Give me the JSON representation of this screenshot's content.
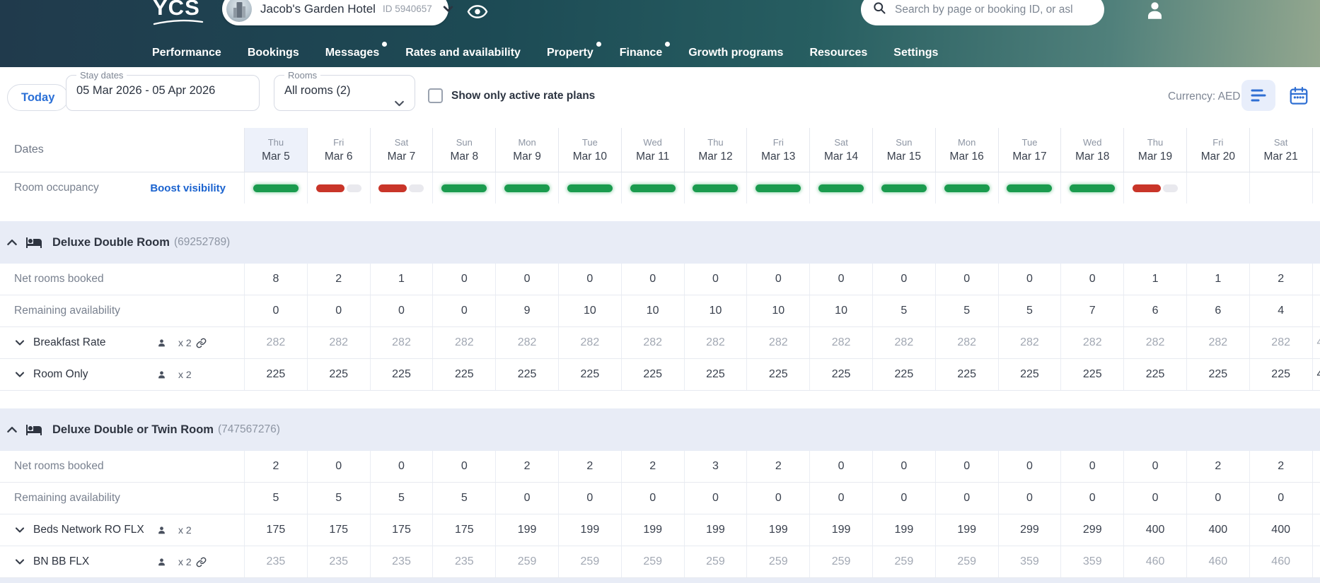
{
  "brand": {
    "logo_text": "YCS"
  },
  "header": {
    "hotel_name": "Jacob's Garden Hotel",
    "hotel_id": "ID 5940657",
    "search_placeholder": "Search by page or booking ID, or asl",
    "nav": [
      {
        "label": "Performance",
        "dot": false
      },
      {
        "label": "Bookings",
        "dot": false
      },
      {
        "label": "Messages",
        "dot": true
      },
      {
        "label": "Rates and availability",
        "dot": false
      },
      {
        "label": "Property",
        "dot": true
      },
      {
        "label": "Finance",
        "dot": true
      },
      {
        "label": "Growth programs",
        "dot": false
      },
      {
        "label": "Resources",
        "dot": false
      },
      {
        "label": "Settings",
        "dot": false
      }
    ]
  },
  "toolbar": {
    "today_label": "Today",
    "stay_dates_label": "Stay dates",
    "stay_dates_value": "05 Mar 2026 - 05 Apr 2026",
    "rooms_label": "Rooms",
    "rooms_value": "All rooms (2)",
    "active_plans_label": "Show only active rate plans",
    "currency_label": "Currency: AED"
  },
  "table": {
    "dates_label": "Dates",
    "occupancy_label": "Room occupancy",
    "boost_label": "Boost visibility",
    "columns": [
      {
        "day": "Thu",
        "date": "Mar 5",
        "today": true
      },
      {
        "day": "Fri",
        "date": "Mar 6",
        "today": false
      },
      {
        "day": "Sat",
        "date": "Mar 7",
        "today": false
      },
      {
        "day": "Sun",
        "date": "Mar 8",
        "today": false
      },
      {
        "day": "Mon",
        "date": "Mar 9",
        "today": false
      },
      {
        "day": "Tue",
        "date": "Mar 10",
        "today": false
      },
      {
        "day": "Wed",
        "date": "Mar 11",
        "today": false
      },
      {
        "day": "Thu",
        "date": "Mar 12",
        "today": false
      },
      {
        "day": "Fri",
        "date": "Mar 13",
        "today": false
      },
      {
        "day": "Sat",
        "date": "Mar 14",
        "today": false
      },
      {
        "day": "Sun",
        "date": "Mar 15",
        "today": false
      },
      {
        "day": "Mon",
        "date": "Mar 16",
        "today": false
      },
      {
        "day": "Tue",
        "date": "Mar 17",
        "today": false
      },
      {
        "day": "Wed",
        "date": "Mar 18",
        "today": false
      },
      {
        "day": "Thu",
        "date": "Mar 19",
        "today": false
      },
      {
        "day": "Fri",
        "date": "Mar 20",
        "today": false
      },
      {
        "day": "Sat",
        "date": "Mar 21",
        "today": false
      }
    ],
    "occupancy": [
      "green",
      "red",
      "red",
      "green",
      "green",
      "green",
      "green",
      "green",
      "green",
      "green",
      "green",
      "green",
      "green",
      "green",
      "red",
      "none",
      "none"
    ]
  },
  "rooms": [
    {
      "name": "Deluxe Double Room",
      "id": "(69252789)",
      "rows": [
        {
          "type": "metric",
          "label": "Net rooms booked",
          "values": [
            8,
            2,
            1,
            0,
            0,
            0,
            0,
            0,
            0,
            0,
            0,
            0,
            0,
            0,
            1,
            1,
            2
          ],
          "partial": ""
        },
        {
          "type": "metric",
          "label": "Remaining availability",
          "values": [
            0,
            0,
            0,
            0,
            9,
            10,
            10,
            10,
            10,
            10,
            5,
            5,
            5,
            7,
            6,
            6,
            4
          ],
          "partial": ""
        },
        {
          "type": "rate",
          "label": "Breakfast Rate",
          "persons": "x 2",
          "linked": true,
          "muted": true,
          "values": [
            282,
            282,
            282,
            282,
            282,
            282,
            282,
            282,
            282,
            282,
            282,
            282,
            282,
            282,
            282,
            282,
            282
          ],
          "partial": "4"
        },
        {
          "type": "rate",
          "label": "Room Only",
          "persons": "x 2",
          "linked": false,
          "muted": false,
          "values": [
            225,
            225,
            225,
            225,
            225,
            225,
            225,
            225,
            225,
            225,
            225,
            225,
            225,
            225,
            225,
            225,
            225
          ],
          "partial": "4"
        }
      ]
    },
    {
      "name": "Deluxe Double or Twin Room",
      "id": "(747567276)",
      "rows": [
        {
          "type": "metric",
          "label": "Net rooms booked",
          "values": [
            2,
            0,
            0,
            0,
            2,
            2,
            2,
            3,
            2,
            0,
            0,
            0,
            0,
            0,
            0,
            2,
            2
          ],
          "partial": ""
        },
        {
          "type": "metric",
          "label": "Remaining availability",
          "values": [
            5,
            5,
            5,
            5,
            0,
            0,
            0,
            0,
            0,
            0,
            0,
            0,
            0,
            0,
            0,
            0,
            0
          ],
          "partial": ""
        },
        {
          "type": "rate",
          "label": "Beds Network RO FLX",
          "persons": "x 2",
          "linked": false,
          "muted": false,
          "values": [
            175,
            175,
            175,
            175,
            199,
            199,
            199,
            199,
            199,
            199,
            199,
            199,
            299,
            299,
            400,
            400,
            400
          ],
          "partial": ""
        },
        {
          "type": "rate",
          "label": "BN BB FLX",
          "persons": "x 2",
          "linked": true,
          "muted": true,
          "values": [
            235,
            235,
            235,
            235,
            259,
            259,
            259,
            259,
            259,
            259,
            259,
            259,
            359,
            359,
            460,
            460,
            460
          ],
          "partial": ""
        }
      ]
    }
  ],
  "colors": {
    "accent_blue": "#2a6fd6",
    "link_blue": "#1b63cf",
    "occupancy_green": "#1a9b4e",
    "occupancy_red": "#c93529",
    "band_bg": "#e8ecf6",
    "header_gradient_start": "#203a4c",
    "header_gradient_end": "#93a78f"
  }
}
